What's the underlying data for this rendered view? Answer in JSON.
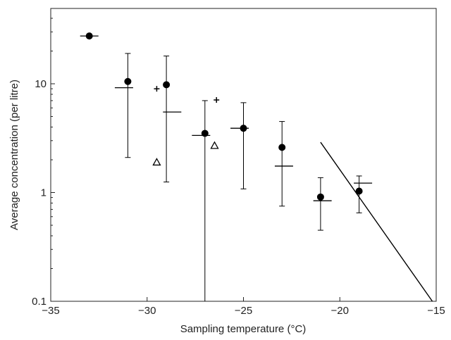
{
  "chart_data": {
    "type": "scatter",
    "title": "",
    "xlabel": "Sampling temperature (°C)",
    "ylabel": "Average concentration (per litre)",
    "xlim": [
      -35,
      -15
    ],
    "ylim": [
      0.1,
      40
    ],
    "y_scale": "log",
    "grid": false,
    "legend": "none",
    "x_ticks": [
      -35,
      -30,
      -25,
      -20,
      -15
    ],
    "x_tick_labels": [
      "−35",
      "−30",
      "−25",
      "−20",
      "−15"
    ],
    "y_ticks": [
      0.1,
      1,
      10
    ],
    "y_tick_labels": [
      "0.1",
      "1",
      "10"
    ],
    "circle_points": [
      {
        "x": -33,
        "y": 27.5,
        "lower": 27.5,
        "upper": 27.5
      },
      {
        "x": -31,
        "y": 10.5,
        "lower": 2.1,
        "upper": 19
      },
      {
        "x": -29,
        "y": 9.8,
        "lower": 1.25,
        "upper": 18
      },
      {
        "x": -27,
        "y": 3.5,
        "lower": 0.1,
        "upper": 7
      },
      {
        "x": -25,
        "y": 3.9,
        "lower": 1.08,
        "upper": 6.7
      },
      {
        "x": -23,
        "y": 2.6,
        "lower": 0.75,
        "upper": 4.5
      },
      {
        "x": -21,
        "y": 0.91,
        "lower": 0.45,
        "upper": 1.37
      },
      {
        "x": -19,
        "y": 1.03,
        "lower": 0.65,
        "upper": 1.42
      }
    ],
    "horizontal_bars": [
      {
        "x": -33,
        "y": 27.5
      },
      {
        "x": -31.2,
        "y": 9.2
      },
      {
        "x": -28.7,
        "y": 5.5
      },
      {
        "x": -27.2,
        "y": 3.35
      },
      {
        "x": -25.2,
        "y": 3.9
      },
      {
        "x": -22.9,
        "y": 1.75
      },
      {
        "x": -20.9,
        "y": 0.84
      },
      {
        "x": -18.8,
        "y": 1.22
      }
    ],
    "plus_points": [
      {
        "x": -29.5,
        "y": 9.0
      },
      {
        "x": -26.4,
        "y": 7.1
      }
    ],
    "triangle_points": [
      {
        "x": -29.5,
        "y": 1.9
      },
      {
        "x": -26.5,
        "y": 2.7
      }
    ],
    "line": {
      "x": [
        -21,
        -15.2
      ],
      "y": [
        2.9,
        0.1
      ]
    },
    "colors": {
      "marker": "#000000",
      "axis": "#222222"
    }
  }
}
